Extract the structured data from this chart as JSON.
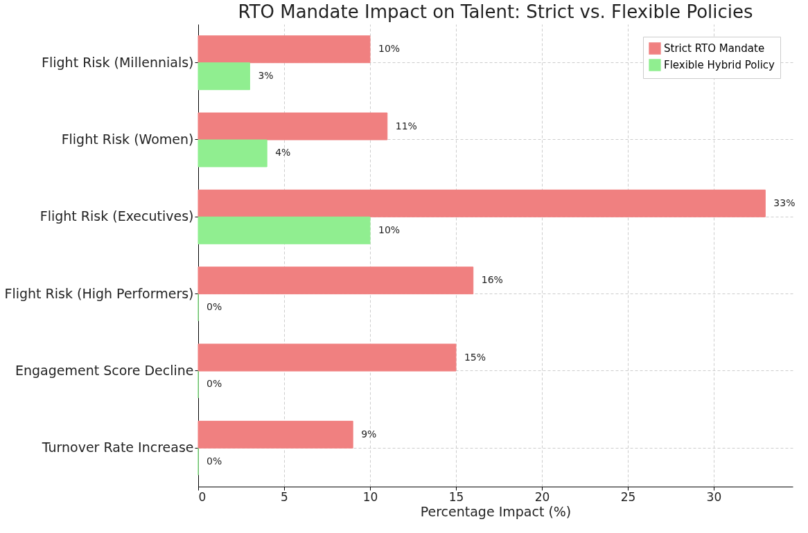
{
  "chart_data": {
    "type": "bar",
    "orientation": "horizontal",
    "title": "RTO Mandate Impact on Talent: Strict vs. Flexible Policies",
    "xlabel": "Percentage Impact (%)",
    "categories": [
      "Flight Risk (Millennials)",
      "Flight Risk (Women)",
      "Flight Risk (Executives)",
      "Flight Risk (High Performers)",
      "Engagement Score Decline",
      "Turnover Rate Increase"
    ],
    "series": [
      {
        "name": "Strict RTO Mandate",
        "color": "#f08080",
        "values": [
          10,
          11,
          33,
          16,
          15,
          9
        ],
        "value_labels": [
          "10%",
          "11%",
          "33%",
          "16%",
          "15%",
          "9%"
        ]
      },
      {
        "name": "Flexible Hybrid Policy",
        "color": "#90ee90",
        "values": [
          3,
          4,
          10,
          0,
          0,
          0
        ],
        "value_labels": [
          "3%",
          "4%",
          "10%",
          "0%",
          "0%",
          "0%"
        ]
      }
    ],
    "xlim": [
      0,
      34.6
    ],
    "xticks": [
      0,
      5,
      10,
      15,
      20,
      25,
      30
    ],
    "grid": true,
    "legend": "top right"
  }
}
